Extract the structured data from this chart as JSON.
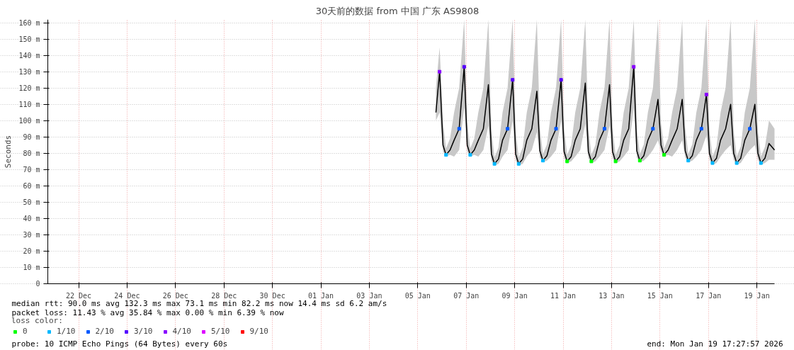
{
  "chart_data": {
    "type": "line",
    "title": "30天前的数据 from 中国 广东 AS9808",
    "ylabel": "Seconds",
    "xlim": [
      "2025-12-20T17:28",
      "2026-01-19T17:28"
    ],
    "xticks": [
      {
        "value": "2025-12-22",
        "label": "22 Dec"
      },
      {
        "value": "2025-12-24",
        "label": "24 Dec"
      },
      {
        "value": "2025-12-26",
        "label": "26 Dec"
      },
      {
        "value": "2025-12-28",
        "label": "28 Dec"
      },
      {
        "value": "2025-12-30",
        "label": "30 Dec"
      },
      {
        "value": "2026-01-01",
        "label": "01 Jan"
      },
      {
        "value": "2026-01-03",
        "label": "03 Jan"
      },
      {
        "value": "2026-01-05",
        "label": "05 Jan"
      },
      {
        "value": "2026-01-07",
        "label": "07 Jan"
      },
      {
        "value": "2026-01-09",
        "label": "09 Jan"
      },
      {
        "value": "2026-01-11",
        "label": "11 Jan"
      },
      {
        "value": "2026-01-13",
        "label": "13 Jan"
      },
      {
        "value": "2026-01-15",
        "label": "15 Jan"
      },
      {
        "value": "2026-01-17",
        "label": "17 Jan"
      },
      {
        "value": "2026-01-19",
        "label": "19 Jan"
      }
    ],
    "ylim": [
      0,
      162
    ],
    "yticks": [
      0,
      {
        "value": 10,
        "label": "10 m"
      },
      {
        "value": 20,
        "label": "20 m"
      },
      {
        "value": 30,
        "label": "30 m"
      },
      {
        "value": 40,
        "label": "40 m"
      },
      {
        "value": 50,
        "label": "50 m"
      },
      {
        "value": 60,
        "label": "60 m"
      },
      {
        "value": 70,
        "label": "70 m"
      },
      {
        "value": 80,
        "label": "80 m"
      },
      {
        "value": 90,
        "label": "90 m"
      },
      {
        "value": 100,
        "label": "100 m"
      },
      {
        "value": 110,
        "label": "110 m"
      },
      {
        "value": 120,
        "label": "120 m"
      },
      {
        "value": 130,
        "label": "130 m"
      },
      {
        "value": 140,
        "label": "140 m"
      },
      {
        "value": 150,
        "label": "150 m"
      },
      {
        "value": 160,
        "label": "160 m"
      }
    ],
    "grid": true,
    "legend": "bottom",
    "legend_title": "loss color:",
    "line_style": "solid",
    "annotations": [
      "median rtt:  90.0 ms avg  132.3 ms max  73.1 ms min  82.2 ms now  14.4 ms sd  6.2   am/s",
      "packet loss: 11.43 % avg  35.84 % max  0.00 % min  6.39 % now",
      "probe:       10 ICMP Echo Pings (64 Bytes) every 60s",
      "end: Mon Jan 19 17:27:57 2026"
    ],
    "series": [
      {
        "color": "#000000",
        "x": [
          "2026-01-05T18:00",
          "2026-01-05T21:40",
          "2026-01-06T01:00",
          "2026-01-06T04:00",
          "2026-01-06T08:00",
          "2026-01-06T12:00",
          "2026-01-06T17:00",
          "2026-01-06T22:00",
          "2026-01-07T01:00",
          "2026-01-07T04:00",
          "2026-01-07T08:00",
          "2026-01-07T12:00",
          "2026-01-07T17:00",
          "2026-01-07T22:00",
          "2026-01-08T01:00",
          "2026-01-08T04:00",
          "2026-01-08T08:00",
          "2026-01-08T12:00",
          "2026-01-08T17:00",
          "2026-01-08T22:00",
          "2026-01-09T01:00",
          "2026-01-09T04:00",
          "2026-01-09T08:00",
          "2026-01-09T12:00",
          "2026-01-09T17:00",
          "2026-01-09T22:00",
          "2026-01-10T01:00",
          "2026-01-10T04:00",
          "2026-01-10T08:00",
          "2026-01-10T12:00",
          "2026-01-10T17:00",
          "2026-01-10T22:00",
          "2026-01-11T01:00",
          "2026-01-11T04:00",
          "2026-01-11T08:00",
          "2026-01-11T12:00",
          "2026-01-11T17:00",
          "2026-01-11T22:00",
          "2026-01-12T01:00",
          "2026-01-12T04:00",
          "2026-01-12T08:00",
          "2026-01-12T12:00",
          "2026-01-12T17:00",
          "2026-01-12T22:00",
          "2026-01-13T01:00",
          "2026-01-13T04:00",
          "2026-01-13T08:00",
          "2026-01-13T12:00",
          "2026-01-13T17:00",
          "2026-01-13T22:00",
          "2026-01-14T01:00",
          "2026-01-14T04:00",
          "2026-01-14T08:00",
          "2026-01-14T12:00",
          "2026-01-14T17:00",
          "2026-01-14T22:00",
          "2026-01-15T01:00",
          "2026-01-15T04:00",
          "2026-01-15T08:00",
          "2026-01-15T12:00",
          "2026-01-15T17:00",
          "2026-01-15T22:00",
          "2026-01-16T01:00",
          "2026-01-16T04:00",
          "2026-01-16T08:00",
          "2026-01-16T12:00",
          "2026-01-16T17:00",
          "2026-01-16T22:00",
          "2026-01-17T01:00",
          "2026-01-17T04:00",
          "2026-01-17T08:00",
          "2026-01-17T12:00",
          "2026-01-17T17:00",
          "2026-01-17T22:00",
          "2026-01-18T01:00",
          "2026-01-18T04:00",
          "2026-01-18T08:00",
          "2026-01-18T12:00",
          "2026-01-18T17:00",
          "2026-01-18T22:00",
          "2026-01-19T01:00",
          "2026-01-19T04:00",
          "2026-01-19T08:00",
          "2026-01-19T12:00",
          "2026-01-19T17:28"
        ],
        "values": [
          105,
          130,
          85,
          79,
          82,
          88,
          95,
          133,
          85,
          79,
          82,
          88,
          95,
          122,
          79.5,
          73.5,
          76.5,
          88,
          95,
          125,
          79.5,
          73.5,
          76.5,
          88,
          95,
          118,
          81.5,
          75.5,
          78.5,
          88,
          95,
          125,
          81,
          75,
          78,
          88,
          95,
          123,
          81,
          75,
          78,
          88,
          95,
          122,
          81,
          75,
          78,
          88,
          95,
          133,
          81.5,
          75.5,
          78.5,
          88,
          95,
          113,
          85,
          79,
          82,
          88,
          95,
          113,
          81.5,
          75.5,
          78.5,
          88,
          95,
          116,
          80,
          74,
          77,
          88,
          95,
          110,
          80,
          74,
          77,
          88,
          95,
          110,
          80,
          74,
          77,
          86,
          82
        ],
        "lower": [
          100,
          105,
          81,
          78,
          79,
          78,
          82,
          108,
          81,
          78,
          79,
          78,
          82,
          97,
          75.5,
          72.5,
          73.5,
          78,
          82,
          100,
          75.5,
          72.5,
          73.5,
          78,
          82,
          93,
          77.5,
          74.5,
          75.5,
          78,
          82,
          100,
          77,
          74,
          75,
          78,
          82,
          98,
          77,
          74,
          75,
          78,
          82,
          97,
          77,
          74,
          75,
          78,
          82,
          108,
          77.5,
          74.5,
          75.5,
          78,
          82,
          88,
          81,
          78,
          79,
          78,
          82,
          88,
          77.5,
          74.5,
          75.5,
          78,
          82,
          91,
          76,
          73,
          74,
          78,
          82,
          85,
          76,
          73,
          74,
          78,
          82,
          85,
          76,
          73,
          74,
          76,
          76
        ],
        "upper": [
          120,
          145,
          99,
          83,
          89,
          105,
          120,
          162,
          99,
          83,
          89,
          105,
          120,
          162,
          93.5,
          77.5,
          83.5,
          105,
          120,
          162,
          93.5,
          77.5,
          83.5,
          105,
          120,
          162,
          95.5,
          79.5,
          85.5,
          105,
          120,
          162,
          95,
          79,
          85,
          105,
          120,
          162,
          95,
          79,
          85,
          105,
          120,
          162,
          95,
          79,
          85,
          105,
          120,
          162,
          95.5,
          79.5,
          85.5,
          105,
          120,
          162,
          99,
          83,
          89,
          105,
          120,
          162,
          95.5,
          79.5,
          85.5,
          105,
          120,
          162,
          94,
          78,
          84,
          105,
          120,
          162,
          94,
          78,
          84,
          105,
          120,
          162,
          94,
          78,
          84,
          100,
          95
        ]
      },
      {
        "type": "scatter",
        "marker": "square",
        "name": "0",
        "color": "#00ff00",
        "x": [
          "2026-01-11T04:00",
          "2026-01-12T04:00",
          "2026-01-13T04:00",
          "2026-01-14T04:00",
          "2026-01-15T04:00"
        ],
        "values": [
          75,
          75,
          75,
          75.5,
          79
        ]
      },
      {
        "type": "scatter",
        "marker": "square",
        "name": "1/10",
        "color": "#00b8ff",
        "x": [
          "2026-01-06T04:00",
          "2026-01-07T04:00",
          "2026-01-08T04:00",
          "2026-01-09T04:00",
          "2026-01-10T04:00",
          "2026-01-16T04:00",
          "2026-01-17T04:00",
          "2026-01-18T04:00",
          "2026-01-19T04:00"
        ],
        "values": [
          79,
          79,
          73.5,
          73.5,
          75.5,
          75.5,
          74,
          74,
          74
        ]
      },
      {
        "type": "scatter",
        "marker": "square",
        "name": "2/10",
        "color": "#0059ff",
        "x": [
          "2026-01-06T17:00",
          "2026-01-08T17:00",
          "2026-01-10T17:00",
          "2026-01-12T17:00",
          "2026-01-14T17:00",
          "2026-01-16T17:00",
          "2026-01-18T17:00"
        ],
        "values": [
          95,
          95,
          95,
          95,
          95,
          95,
          95
        ]
      },
      {
        "type": "scatter",
        "marker": "square",
        "name": "3/10",
        "color": "#5500ff",
        "x": [
          "2026-01-06T22:00",
          "2026-01-08T22:00",
          "2026-01-10T22:00"
        ],
        "values": [
          133,
          125,
          125
        ]
      },
      {
        "type": "scatter",
        "marker": "square",
        "name": "4/10",
        "color": "#8800ff",
        "x": [
          "2026-01-05T21:40",
          "2026-01-13T22:00",
          "2026-01-16T22:00"
        ],
        "values": [
          130,
          133,
          116
        ]
      },
      {
        "type": "scatter",
        "marker": "square",
        "name": "5/10",
        "color": "#dd00ff"
      },
      {
        "type": "scatter",
        "marker": "square",
        "name": "9/10",
        "color": "#ff0000"
      }
    ]
  }
}
